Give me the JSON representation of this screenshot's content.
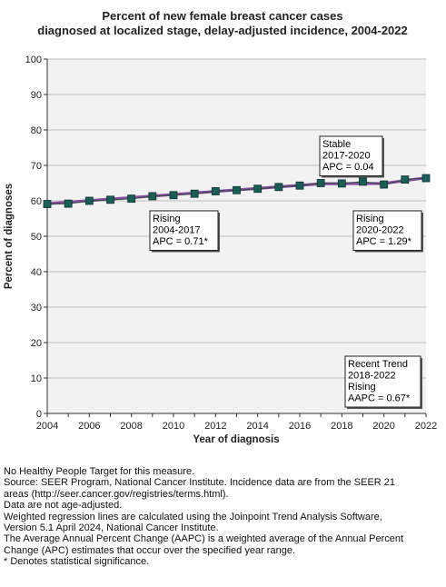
{
  "chart_data": {
    "type": "line",
    "title_lines": [
      "Percent of new female breast cancer cases",
      "diagnosed at localized stage, delay-adjusted incidence, 2004-2022"
    ],
    "xlabel": "Year of diagnosis",
    "ylabel": "Percent of diagnoses",
    "xlim": [
      2004,
      2022
    ],
    "ylim": [
      0,
      100
    ],
    "x_ticks": [
      "2004",
      "2006",
      "2008",
      "2010",
      "2012",
      "2014",
      "2016",
      "2018",
      "2020",
      "2022"
    ],
    "y_ticks": [
      "0",
      "10",
      "20",
      "30",
      "40",
      "50",
      "60",
      "70",
      "80",
      "90",
      "100"
    ],
    "grid": "horizontal",
    "observed": {
      "x": [
        2004,
        2005,
        2006,
        2007,
        2008,
        2009,
        2010,
        2011,
        2012,
        2013,
        2014,
        2015,
        2016,
        2017,
        2018,
        2019,
        2020,
        2021,
        2022
      ],
      "y": [
        59.1,
        59.2,
        60.0,
        60.3,
        60.6,
        61.3,
        61.6,
        62.0,
        62.7,
        63.0,
        63.4,
        63.9,
        64.3,
        65.0,
        64.9,
        65.4,
        64.6,
        66.0,
        66.4
      ]
    },
    "trend": {
      "x": [
        2004,
        2017,
        2020,
        2022
      ],
      "y": [
        59.2,
        64.8,
        64.9,
        66.5
      ]
    },
    "colors": {
      "marker": "#1b5e57",
      "marker_edge": "#0e3330",
      "trend_line": "#8d4fa6",
      "observed_line": "#3a4a48",
      "grid": "#bdbdbd",
      "plot_bg": "#f2f2f2"
    },
    "annotations": [
      {
        "lines": [
          "Rising",
          "2004-2017",
          "APC =  0.71*"
        ]
      },
      {
        "lines": [
          "Stable",
          "2017-2020",
          "APC =  0.04"
        ]
      },
      {
        "lines": [
          "Rising",
          "2020-2022",
          "APC =  1.29*"
        ]
      },
      {
        "lines": [
          "Recent Trend",
          "2018-2022",
          "Rising",
          "AAPC =  0.67*"
        ]
      }
    ]
  },
  "footnotes": [
    "No Healthy People Target for this measure.",
    "Source: SEER Program, National Cancer Institute. Incidence data are from the SEER 21",
    "areas (http://seer.cancer.gov/registries/terms.html).",
    "Data are not age-adjusted.",
    "Weighted regression lines are calculated using the Joinpoint Trend Analysis Software,",
    "Version 5.1 April 2024, National Cancer Institute.",
    "The Average Annual Percent Change (AAPC) is a weighted average of the Annual Percent",
    "Change (APC) estimates that occur over the specified year range.",
    "* Denotes statistical significance."
  ]
}
